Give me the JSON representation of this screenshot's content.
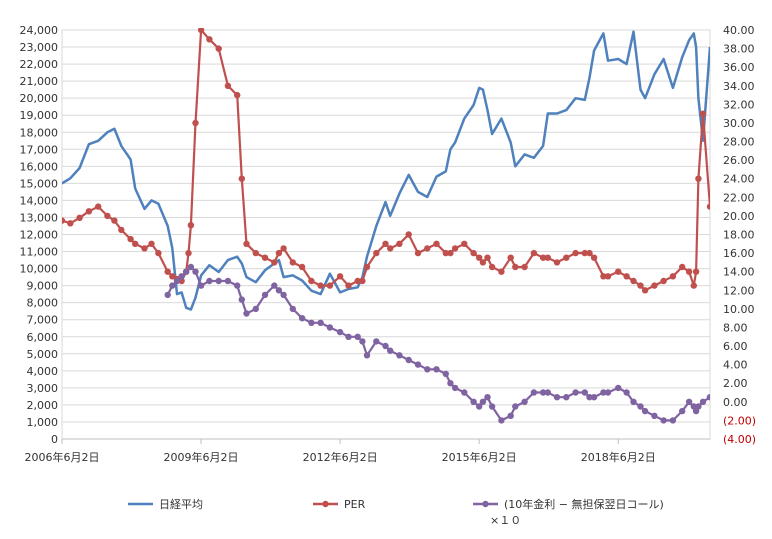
{
  "chart_data": {
    "type": "line",
    "x_ticks": [
      "2006年6月2日",
      "2009年6月2日",
      "2012年6月2日",
      "2015年6月2日",
      "2018年6月2日"
    ],
    "x_tick_years": [
      2006.42,
      2009.42,
      2012.42,
      2015.42,
      2018.42
    ],
    "x_range": [
      2006.42,
      2020.4
    ],
    "y_left": {
      "range": [
        0,
        24000
      ],
      "ticks": [
        "0",
        "1,000",
        "2,000",
        "3,000",
        "4,000",
        "5,000",
        "6,000",
        "7,000",
        "8,000",
        "9,000",
        "10,000",
        "11,000",
        "12,000",
        "13,000",
        "14,000",
        "15,000",
        "16,000",
        "17,000",
        "18,000",
        "19,000",
        "20,000",
        "21,000",
        "22,000",
        "23,000",
        "24,000"
      ]
    },
    "y_right": {
      "range": [
        -4,
        40
      ],
      "ticks": [
        "(4.00)",
        "(2.00)",
        "0.00",
        "2.00",
        "4.00",
        "6.00",
        "8.00",
        "10.00",
        "12.00",
        "14.00",
        "16.00",
        "18.00",
        "20.00",
        "22.00",
        "24.00",
        "26.00",
        "28.00",
        "30.00",
        "32.00",
        "34.00",
        "36.00",
        "38.00",
        "40.00"
      ],
      "negative_color": "#c00000"
    },
    "grid": "horizontal",
    "legend_position": "bottom",
    "series": [
      {
        "name": "日経平均",
        "axis": "left",
        "color": "#4f81bd",
        "markers": false,
        "x": [
          2006.42,
          2006.6,
          2006.8,
          2007.0,
          2007.2,
          2007.4,
          2007.55,
          2007.7,
          2007.9,
          2008.0,
          2008.2,
          2008.35,
          2008.5,
          2008.7,
          2008.8,
          2008.9,
          2009.0,
          2009.1,
          2009.2,
          2009.3,
          2009.42,
          2009.6,
          2009.8,
          2010.0,
          2010.2,
          2010.3,
          2010.4,
          2010.6,
          2010.8,
          2011.0,
          2011.1,
          2011.2,
          2011.4,
          2011.6,
          2011.8,
          2012.0,
          2012.2,
          2012.42,
          2012.6,
          2012.8,
          2012.9,
          2013.0,
          2013.2,
          2013.4,
          2013.5,
          2013.7,
          2013.9,
          2014.1,
          2014.3,
          2014.5,
          2014.7,
          2014.8,
          2014.9,
          2015.1,
          2015.3,
          2015.42,
          2015.5,
          2015.6,
          2015.7,
          2015.9,
          2016.1,
          2016.2,
          2016.4,
          2016.6,
          2016.8,
          2016.9,
          2017.1,
          2017.3,
          2017.5,
          2017.7,
          2017.8,
          2017.9,
          2018.1,
          2018.2,
          2018.42,
          2018.6,
          2018.75,
          2018.9,
          2019.0,
          2019.2,
          2019.4,
          2019.6,
          2019.8,
          2019.95,
          2020.05,
          2020.1,
          2020.15,
          2020.25,
          2020.4
        ],
        "y": [
          15000,
          15300,
          15900,
          17300,
          17500,
          18000,
          18200,
          17200,
          16400,
          14700,
          13500,
          14000,
          13800,
          12500,
          11200,
          8500,
          8600,
          7700,
          7600,
          8300,
          9600,
          10200,
          9800,
          10500,
          10700,
          10300,
          9500,
          9200,
          9900,
          10300,
          10500,
          9500,
          9600,
          9300,
          8700,
          8500,
          9700,
          8600,
          8800,
          8900,
          9500,
          10700,
          12500,
          13900,
          13100,
          14400,
          15500,
          14500,
          14200,
          15400,
          15700,
          17000,
          17400,
          18800,
          19600,
          20600,
          20500,
          19300,
          17900,
          18800,
          17400,
          16000,
          16700,
          16500,
          17200,
          19100,
          19100,
          19300,
          20000,
          19900,
          21200,
          22800,
          23800,
          22200,
          22300,
          22000,
          23900,
          20500,
          20000,
          21400,
          22300,
          20600,
          22400,
          23400,
          23800,
          23000,
          20000,
          17500,
          23000
        ]
      },
      {
        "name": "PER",
        "axis": "right",
        "color": "#c0504d",
        "markers": true,
        "x": [
          2006.42,
          2006.6,
          2006.8,
          2007.0,
          2007.2,
          2007.4,
          2007.55,
          2007.7,
          2007.9,
          2008.0,
          2008.2,
          2008.35,
          2008.5,
          2008.7,
          2008.8,
          2008.9,
          2009.0,
          2009.1,
          2009.15,
          2009.2,
          2009.3,
          2009.42,
          2009.6,
          2009.8,
          2010.0,
          2010.2,
          2010.3,
          2010.4,
          2010.6,
          2010.8,
          2011.0,
          2011.1,
          2011.2,
          2011.4,
          2011.6,
          2011.8,
          2012.0,
          2012.2,
          2012.42,
          2012.6,
          2012.8,
          2012.9,
          2013.0,
          2013.2,
          2013.4,
          2013.5,
          2013.7,
          2013.9,
          2014.1,
          2014.3,
          2014.5,
          2014.7,
          2014.8,
          2014.9,
          2015.1,
          2015.3,
          2015.42,
          2015.5,
          2015.6,
          2015.7,
          2015.9,
          2016.1,
          2016.2,
          2016.4,
          2016.6,
          2016.8,
          2016.9,
          2017.1,
          2017.3,
          2017.5,
          2017.7,
          2017.8,
          2017.9,
          2018.1,
          2018.2,
          2018.42,
          2018.6,
          2018.75,
          2018.9,
          2019.0,
          2019.2,
          2019.4,
          2019.6,
          2019.8,
          2019.95,
          2020.05,
          2020.1,
          2020.15,
          2020.25,
          2020.4
        ],
        "y": [
          19.5,
          19.2,
          19.8,
          20.5,
          21,
          20,
          19.5,
          18.5,
          17.5,
          17,
          16.5,
          17,
          16,
          14,
          13.5,
          13.2,
          13,
          14,
          16,
          19,
          30,
          40,
          39,
          38,
          34,
          33,
          24,
          17,
          16,
          15.5,
          15,
          16,
          16.5,
          15,
          14.5,
          13,
          12.5,
          12.5,
          13.5,
          12.5,
          13,
          13,
          14.5,
          16,
          17,
          16.5,
          17,
          18,
          16,
          16.5,
          17,
          16,
          16,
          16.5,
          17,
          16,
          15.5,
          15,
          15.5,
          14.5,
          14,
          15.5,
          14.5,
          14.5,
          16,
          15.5,
          15.5,
          15,
          15.5,
          16,
          16,
          16,
          15.5,
          13.5,
          13.5,
          14,
          13.5,
          13,
          12.5,
          12,
          12.5,
          13,
          13.5,
          14.5,
          14,
          12.5,
          14,
          24,
          31,
          21
        ]
      },
      {
        "name": "(10年金利 − 無担保翌日コール)×１０",
        "axis": "right",
        "color": "#8064a2",
        "markers": true,
        "x": [
          2008.7,
          2008.8,
          2008.9,
          2009.0,
          2009.1,
          2009.2,
          2009.3,
          2009.42,
          2009.6,
          2009.8,
          2010.0,
          2010.2,
          2010.3,
          2010.4,
          2010.6,
          2010.8,
          2011.0,
          2011.1,
          2011.2,
          2011.4,
          2011.6,
          2011.8,
          2012.0,
          2012.2,
          2012.42,
          2012.6,
          2012.8,
          2012.9,
          2013.0,
          2013.2,
          2013.4,
          2013.5,
          2013.7,
          2013.9,
          2014.1,
          2014.3,
          2014.5,
          2014.7,
          2014.8,
          2014.9,
          2015.1,
          2015.3,
          2015.42,
          2015.5,
          2015.6,
          2015.7,
          2015.9,
          2016.1,
          2016.2,
          2016.4,
          2016.6,
          2016.8,
          2016.9,
          2017.1,
          2017.3,
          2017.5,
          2017.7,
          2017.8,
          2017.9,
          2018.1,
          2018.2,
          2018.42,
          2018.6,
          2018.75,
          2018.9,
          2019.0,
          2019.2,
          2019.4,
          2019.6,
          2019.8,
          2019.95,
          2020.05,
          2020.1,
          2020.15,
          2020.25,
          2020.4
        ],
        "y": [
          11.5,
          12.5,
          13,
          13.5,
          14,
          14.5,
          14,
          12.5,
          13,
          13,
          13,
          12.5,
          11,
          9.5,
          10,
          11.5,
          12.5,
          12,
          11.5,
          10,
          9,
          8.5,
          8.5,
          8,
          7.5,
          7,
          7,
          6.5,
          5,
          6.5,
          6,
          5.5,
          5,
          4.5,
          4,
          3.5,
          3.5,
          3,
          2,
          1.5,
          1,
          0,
          -0.5,
          0,
          0.5,
          -0.5,
          -2,
          -1.5,
          -0.5,
          0,
          1,
          1,
          1,
          0.5,
          0.5,
          1,
          1,
          0.5,
          0.5,
          1,
          1,
          1.5,
          1,
          0,
          -0.5,
          -1,
          -1.5,
          -2,
          -2,
          -1,
          0,
          -0.5,
          -1,
          -0.5,
          0,
          0.5
        ]
      }
    ]
  }
}
